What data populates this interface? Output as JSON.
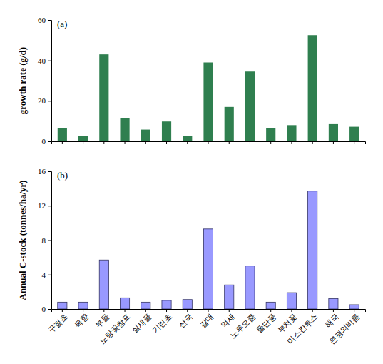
{
  "chart_data": [
    {
      "type": "bar",
      "annotation": "(a)",
      "ylabel": "growth rate (g/d)",
      "categories": [
        "구절초",
        "목향",
        "부들",
        "노랑꽃창포",
        "실새풀",
        "기린초",
        "산국",
        "갈대",
        "억새",
        "노루오줌",
        "돌단풍",
        "부처꽃",
        "미스칸투스",
        "해국",
        "큰꿩의비름"
      ],
      "values": [
        6.5,
        2.8,
        43,
        11.5,
        5.8,
        9.8,
        2.8,
        39,
        17,
        34.5,
        6.5,
        8,
        52.5,
        8.5,
        7.2
      ],
      "color": "#2f7f4f",
      "ylim": [
        0,
        60
      ],
      "yticks": [
        0,
        20,
        40,
        60
      ],
      "tick_labels": "y"
    },
    {
      "type": "bar",
      "annotation": "(b)",
      "ylabel": "Annual C-stock (tonnes/ha/yr)",
      "categories": [
        "구절초",
        "목향",
        "부들",
        "노랑꽃창포",
        "실새풀",
        "기린초",
        "산국",
        "갈대",
        "억새",
        "노루오줌",
        "돌단풍",
        "부처꽃",
        "미스칸투스",
        "해국",
        "큰꿩의비름"
      ],
      "values": [
        0.8,
        0.8,
        5.7,
        1.3,
        0.8,
        1.0,
        1.1,
        9.3,
        2.8,
        5.0,
        0.8,
        1.9,
        13.7,
        1.2,
        0.5
      ],
      "color": "#9999ff",
      "ylim": [
        0,
        16
      ],
      "yticks": [
        0,
        4,
        8,
        12,
        16
      ]
    }
  ]
}
